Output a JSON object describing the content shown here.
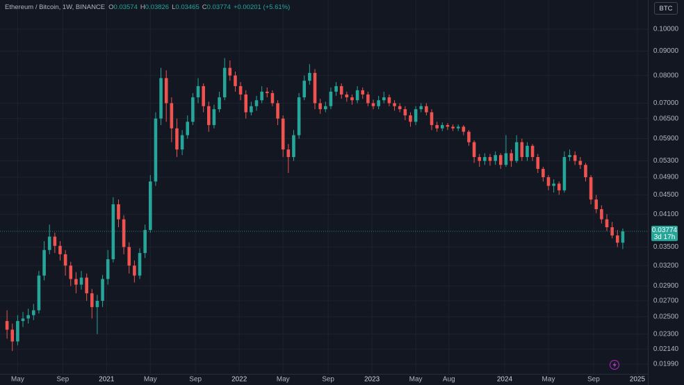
{
  "header": {
    "symbol": "Ethereum / Bitcoin, 1W, BINANCE",
    "ohlc_labels": [
      "O",
      "H",
      "L",
      "C"
    ],
    "change": "+0.00201 (+5.61%)",
    "currency_button": "BTC"
  },
  "chart_data": {
    "type": "candlestick",
    "log_scale": true,
    "grid": true,
    "up_color": "#26a69a",
    "down_color": "#ef5350",
    "countdown": "3d 17h",
    "xlim": [
      2020.197,
      2025.079
    ],
    "ylim": [
      0.01899,
      0.1151
    ],
    "xticks": [
      {
        "value": 2020.33,
        "label": "May"
      },
      {
        "value": 2020.67,
        "label": "Sep"
      },
      {
        "value": 2021,
        "label": "2021"
      },
      {
        "value": 2021.33,
        "label": "May"
      },
      {
        "value": 2021.67,
        "label": "Sep"
      },
      {
        "value": 2022,
        "label": "2022"
      },
      {
        "value": 2022.33,
        "label": "May"
      },
      {
        "value": 2022.67,
        "label": "Sep"
      },
      {
        "value": 2023,
        "label": "2023"
      },
      {
        "value": 2023.33,
        "label": "May"
      },
      {
        "value": 2023.58,
        "label": "Aug"
      },
      {
        "value": 2024,
        "label": "2024"
      },
      {
        "value": 2024.33,
        "label": "May"
      },
      {
        "value": 2024.67,
        "label": "Sep"
      },
      {
        "value": 2025,
        "label": "2025"
      }
    ],
    "yticks": [
      {
        "value": 0.1,
        "label": "0.10000"
      },
      {
        "value": 0.09,
        "label": "0.09000"
      },
      {
        "value": 0.08,
        "label": "0.08000"
      },
      {
        "value": 0.07,
        "label": "0.07000"
      },
      {
        "value": 0.065,
        "label": "0.06500"
      },
      {
        "value": 0.059,
        "label": "0.05900"
      },
      {
        "value": 0.053,
        "label": "0.05300"
      },
      {
        "value": 0.049,
        "label": "0.04900"
      },
      {
        "value": 0.045,
        "label": "0.04500"
      },
      {
        "value": 0.041,
        "label": "0.04100"
      },
      {
        "value": 0.035,
        "label": "0.03500"
      },
      {
        "value": 0.032,
        "label": "0.03200"
      },
      {
        "value": 0.029,
        "label": "0.02900"
      },
      {
        "value": 0.027,
        "label": "0.02700"
      },
      {
        "value": 0.025,
        "label": "0.02500"
      },
      {
        "value": 0.023,
        "label": "0.02300"
      },
      {
        "value": 0.0214,
        "label": "0.02140"
      },
      {
        "value": 0.0199,
        "label": "0.01990"
      }
    ],
    "x": [
      2020.25,
      2020.29,
      2020.33,
      2020.37,
      2020.41,
      2020.45,
      2020.49,
      2020.53,
      2020.57,
      2020.61,
      2020.65,
      2020.69,
      2020.73,
      2020.77,
      2020.81,
      2020.85,
      2020.89,
      2020.93,
      2020.97,
      2021.01,
      2021.05,
      2021.09,
      2021.13,
      2021.17,
      2021.21,
      2021.25,
      2021.29,
      2021.33,
      2021.37,
      2021.41,
      2021.45,
      2021.49,
      2021.53,
      2021.57,
      2021.61,
      2021.65,
      2021.69,
      2021.73,
      2021.77,
      2021.81,
      2021.85,
      2021.89,
      2021.93,
      2021.97,
      2022.01,
      2022.05,
      2022.09,
      2022.13,
      2022.17,
      2022.21,
      2022.25,
      2022.29,
      2022.33,
      2022.37,
      2022.41,
      2022.45,
      2022.49,
      2022.53,
      2022.57,
      2022.61,
      2022.65,
      2022.69,
      2022.73,
      2022.77,
      2022.81,
      2022.85,
      2022.89,
      2022.93,
      2022.97,
      2023.01,
      2023.05,
      2023.09,
      2023.13,
      2023.17,
      2023.21,
      2023.25,
      2023.29,
      2023.33,
      2023.37,
      2023.41,
      2023.45,
      2023.49,
      2023.53,
      2023.57,
      2023.61,
      2023.65,
      2023.69,
      2023.73,
      2023.77,
      2023.81,
      2023.85,
      2023.89,
      2023.93,
      2023.97,
      2024.01,
      2024.05,
      2024.09,
      2024.13,
      2024.17,
      2024.21,
      2024.25,
      2024.29,
      2024.33,
      2024.37,
      2024.41,
      2024.45,
      2024.49,
      2024.53,
      2024.57,
      2024.61,
      2024.65,
      2024.69,
      2024.73,
      2024.77,
      2024.81,
      2024.85,
      2024.89
    ],
    "open": [
      0.0245,
      0.0235,
      0.0222,
      0.0245,
      0.0248,
      0.0252,
      0.0258,
      0.0305,
      0.0345,
      0.0368,
      0.0352,
      0.0338,
      0.032,
      0.03,
      0.0292,
      0.0302,
      0.028,
      0.0262,
      0.027,
      0.03,
      0.033,
      0.043,
      0.04,
      0.035,
      0.032,
      0.0305,
      0.034,
      0.038,
      0.048,
      0.065,
      0.079,
      0.07,
      0.062,
      0.056,
      0.06,
      0.064,
      0.072,
      0.076,
      0.069,
      0.063,
      0.068,
      0.072,
      0.083,
      0.08,
      0.076,
      0.073,
      0.067,
      0.069,
      0.071,
      0.074,
      0.0735,
      0.07,
      0.065,
      0.056,
      0.054,
      0.06,
      0.072,
      0.078,
      0.081,
      0.07,
      0.068,
      0.069,
      0.074,
      0.076,
      0.073,
      0.072,
      0.071,
      0.0745,
      0.073,
      0.07,
      0.069,
      0.071,
      0.072,
      0.07,
      0.069,
      0.068,
      0.066,
      0.064,
      0.068,
      0.069,
      0.067,
      0.063,
      0.062,
      0.063,
      0.0625,
      0.062,
      0.0625,
      0.061,
      0.058,
      0.054,
      0.053,
      0.054,
      0.053,
      0.0545,
      0.052,
      0.055,
      0.053,
      0.058,
      0.054,
      0.057,
      0.054,
      0.051,
      0.049,
      0.047,
      0.0475,
      0.046,
      0.054,
      0.0545,
      0.053,
      0.052,
      0.049,
      0.044,
      0.042,
      0.04,
      0.0385,
      0.037,
      0.03574
    ],
    "high": [
      0.0258,
      0.0242,
      0.0252,
      0.0256,
      0.026,
      0.0266,
      0.0312,
      0.036,
      0.039,
      0.0375,
      0.036,
      0.0345,
      0.0326,
      0.031,
      0.0312,
      0.0308,
      0.0286,
      0.0278,
      0.0306,
      0.0345,
      0.0445,
      0.044,
      0.0408,
      0.0358,
      0.0328,
      0.0348,
      0.039,
      0.0495,
      0.067,
      0.083,
      0.082,
      0.072,
      0.065,
      0.0615,
      0.066,
      0.0735,
      0.079,
      0.077,
      0.0705,
      0.0695,
      0.074,
      0.087,
      0.086,
      0.0815,
      0.0775,
      0.0745,
      0.0705,
      0.0725,
      0.076,
      0.0755,
      0.0745,
      0.071,
      0.066,
      0.0575,
      0.0615,
      0.0735,
      0.08,
      0.0845,
      0.0825,
      0.0715,
      0.0705,
      0.0755,
      0.0775,
      0.077,
      0.074,
      0.073,
      0.076,
      0.0755,
      0.074,
      0.0712,
      0.0725,
      0.074,
      0.073,
      0.071,
      0.07,
      0.069,
      0.067,
      0.069,
      0.07,
      0.07,
      0.068,
      0.064,
      0.0638,
      0.0636,
      0.0632,
      0.0632,
      0.063,
      0.0615,
      0.0585,
      0.0548,
      0.055,
      0.0548,
      0.0555,
      0.055,
      0.06,
      0.056,
      0.06,
      0.059,
      0.058,
      0.0575,
      0.0548,
      0.0515,
      0.0495,
      0.0485,
      0.048,
      0.0555,
      0.056,
      0.0555,
      0.054,
      0.0525,
      0.0495,
      0.045,
      0.0428,
      0.041,
      0.0395,
      0.038,
      0.03826
    ],
    "low": [
      0.0225,
      0.0212,
      0.0218,
      0.0238,
      0.0242,
      0.0246,
      0.0254,
      0.0298,
      0.0338,
      0.034,
      0.0328,
      0.0305,
      0.029,
      0.028,
      0.0285,
      0.027,
      0.0248,
      0.023,
      0.0262,
      0.0292,
      0.0325,
      0.0385,
      0.0338,
      0.0308,
      0.0295,
      0.03,
      0.0332,
      0.0375,
      0.047,
      0.063,
      0.064,
      0.058,
      0.054,
      0.0545,
      0.059,
      0.063,
      0.07,
      0.067,
      0.061,
      0.062,
      0.067,
      0.071,
      0.078,
      0.074,
      0.071,
      0.065,
      0.066,
      0.0675,
      0.07,
      0.072,
      0.069,
      0.063,
      0.054,
      0.05,
      0.053,
      0.059,
      0.071,
      0.0765,
      0.068,
      0.0665,
      0.067,
      0.068,
      0.0725,
      0.0715,
      0.0705,
      0.0695,
      0.07,
      0.0715,
      0.069,
      0.068,
      0.068,
      0.07,
      0.069,
      0.0675,
      0.067,
      0.0645,
      0.0625,
      0.063,
      0.067,
      0.066,
      0.0615,
      0.061,
      0.0612,
      0.0615,
      0.0612,
      0.0612,
      0.06,
      0.057,
      0.0525,
      0.0515,
      0.052,
      0.0518,
      0.052,
      0.051,
      0.0515,
      0.0515,
      0.0525,
      0.053,
      0.053,
      0.053,
      0.05,
      0.048,
      0.046,
      0.0455,
      0.045,
      0.0455,
      0.053,
      0.052,
      0.051,
      0.048,
      0.043,
      0.0412,
      0.0392,
      0.0378,
      0.0365,
      0.035,
      0.03465
    ],
    "close": [
      0.0235,
      0.0222,
      0.0245,
      0.0248,
      0.0252,
      0.0258,
      0.0305,
      0.0345,
      0.0368,
      0.0352,
      0.0338,
      0.032,
      0.03,
      0.0292,
      0.0302,
      0.028,
      0.0262,
      0.027,
      0.03,
      0.033,
      0.043,
      0.04,
      0.035,
      0.032,
      0.0305,
      0.034,
      0.038,
      0.048,
      0.065,
      0.079,
      0.07,
      0.062,
      0.056,
      0.06,
      0.064,
      0.072,
      0.076,
      0.069,
      0.063,
      0.068,
      0.072,
      0.083,
      0.08,
      0.076,
      0.073,
      0.067,
      0.069,
      0.071,
      0.074,
      0.0735,
      0.07,
      0.065,
      0.056,
      0.054,
      0.06,
      0.072,
      0.078,
      0.081,
      0.07,
      0.068,
      0.069,
      0.074,
      0.076,
      0.073,
      0.072,
      0.071,
      0.0745,
      0.073,
      0.07,
      0.069,
      0.071,
      0.072,
      0.07,
      0.069,
      0.068,
      0.066,
      0.064,
      0.068,
      0.069,
      0.067,
      0.063,
      0.062,
      0.063,
      0.0625,
      0.062,
      0.0625,
      0.061,
      0.058,
      0.054,
      0.053,
      0.054,
      0.053,
      0.0545,
      0.052,
      0.055,
      0.053,
      0.058,
      0.054,
      0.057,
      0.054,
      0.051,
      0.049,
      0.047,
      0.0475,
      0.046,
      0.054,
      0.0545,
      0.053,
      0.052,
      0.049,
      0.044,
      0.042,
      0.04,
      0.0385,
      0.037,
      0.03574,
      0.03774
    ]
  }
}
